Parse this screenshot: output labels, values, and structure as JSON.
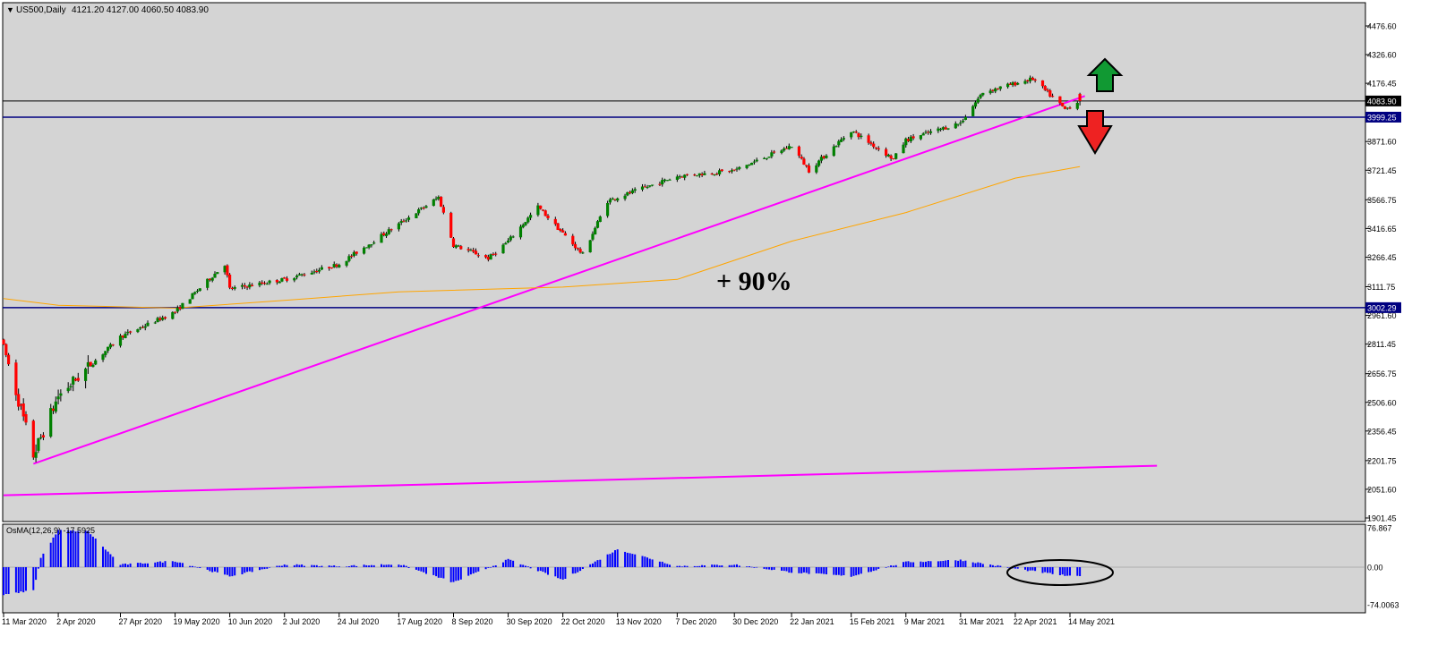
{
  "header": {
    "symbol": "US500,Daily",
    "ohlc": "4121.20 4127.00 4060.50 4083.90"
  },
  "annotation": {
    "gain_text": "+ 90%"
  },
  "colors": {
    "background": "#d4d4d4",
    "bull": "#008000",
    "bear": "#ff0000",
    "trendline": "#ff00ff",
    "moving_average": "#ffa500",
    "level_line": "#000080",
    "histogram": "#0000ff",
    "arrow_up": "#119933",
    "arrow_down": "#ee2222"
  },
  "price_axis": {
    "ticks": [
      "4476.60",
      "4326.60",
      "4176.45",
      "3871.60",
      "3721.45",
      "3566.75",
      "3416.65",
      "3266.45",
      "3111.75",
      "2961.60",
      "2811.45",
      "2656.75",
      "2506.60",
      "2356.45",
      "2201.75",
      "2051.60",
      "1901.45"
    ],
    "current_price": "4083.90",
    "resistance_label": "3999.25",
    "support_label": "3002.29"
  },
  "oscillator": {
    "title": "OsMA(12,26,9) -17.5925",
    "ticks": [
      "76.867",
      "0.00",
      "-74.0063"
    ]
  },
  "time_axis": {
    "labels": [
      "11 Mar 2020",
      "2 Apr 2020",
      "27 Apr 2020",
      "19 May 2020",
      "10 Jun 2020",
      "2 Jul 2020",
      "24 Jul 2020",
      "17 Aug 2020",
      "8 Sep 2020",
      "30 Sep 2020",
      "22 Oct 2020",
      "13 Nov 2020",
      "7 Dec 2020",
      "30 Dec 2020",
      "22 Jan 2021",
      "15 Feb 2021",
      "9 Mar 2021",
      "31 Mar 2021",
      "22 Apr 2021",
      "14 May 2021"
    ]
  },
  "chart_data": {
    "type": "candlestick",
    "symbol": "US500",
    "timeframe": "Daily",
    "last_bar": {
      "open": 4121.2,
      "high": 4127.0,
      "low": 4060.5,
      "close": 4083.9
    },
    "ylim": [
      1901.45,
      4550
    ],
    "horizontal_levels": [
      4083.9,
      3999.25,
      3002.29
    ],
    "path_anchors": [
      {
        "date": "11 Mar 2020",
        "close": 2800
      },
      {
        "date": "23 Mar 2020",
        "close": 2230
      },
      {
        "date": "2 Apr 2020",
        "close": 2540
      },
      {
        "date": "27 Apr 2020",
        "close": 2850
      },
      {
        "date": "19 May 2020",
        "close": 2980
      },
      {
        "date": "8 Jun 2020",
        "close": 3230
      },
      {
        "date": "10 Jun 2020",
        "close": 3100
      },
      {
        "date": "2 Jul 2020",
        "close": 3150
      },
      {
        "date": "24 Jul 2020",
        "close": 3230
      },
      {
        "date": "2 Sep 2020",
        "close": 3580
      },
      {
        "date": "8 Sep 2020",
        "close": 3330
      },
      {
        "date": "22 Sep 2020",
        "close": 3260
      },
      {
        "date": "30 Sep 2020",
        "close": 3350
      },
      {
        "date": "12 Oct 2020",
        "close": 3530
      },
      {
        "date": "30 Oct 2020",
        "close": 3280
      },
      {
        "date": "9 Nov 2020",
        "close": 3560
      },
      {
        "date": "13 Nov 2020",
        "close": 3580
      },
      {
        "date": "7 Dec 2020",
        "close": 3690
      },
      {
        "date": "30 Dec 2020",
        "close": 3720
      },
      {
        "date": "22 Jan 2021",
        "close": 3850
      },
      {
        "date": "29 Jan 2021",
        "close": 3720
      },
      {
        "date": "15 Feb 2021",
        "close": 3930
      },
      {
        "date": "4 Mar 2021",
        "close": 3780
      },
      {
        "date": "9 Mar 2021",
        "close": 3880
      },
      {
        "date": "31 Mar 2021",
        "close": 3970
      },
      {
        "date": "9 Apr 2021",
        "close": 4130
      },
      {
        "date": "29 Apr 2021",
        "close": 4200
      },
      {
        "date": "12 May 2021",
        "close": 4040
      },
      {
        "date": "18 May 2021",
        "close": 4084
      }
    ],
    "moving_average_anchors": [
      {
        "date": "11 Mar 2020",
        "value": 3050
      },
      {
        "date": "2 Apr 2020",
        "value": 3015
      },
      {
        "date": "19 May 2020",
        "value": 3000
      },
      {
        "date": "2 Jul 2020",
        "value": 3040
      },
      {
        "date": "17 Aug 2020",
        "value": 3085
      },
      {
        "date": "22 Oct 2020",
        "value": 3110
      },
      {
        "date": "7 Dec 2020",
        "value": 3150
      },
      {
        "date": "22 Jan 2021",
        "value": 3350
      },
      {
        "date": "9 Mar 2021",
        "value": 3500
      },
      {
        "date": "22 Apr 2021",
        "value": 3680
      },
      {
        "date": "18 May 2021",
        "value": 3740
      }
    ],
    "trendlines": [
      {
        "from": {
          "date": "23 Mar 2020",
          "value": 2185
        },
        "to": {
          "date": "20 May 2021",
          "value": 4110
        }
      },
      {
        "from": {
          "date": "11 Mar 2020",
          "value": 2020
        },
        "to": {
          "date": "18 Jun 2021",
          "value": 2175
        }
      }
    ],
    "oscillator_anchors": [
      {
        "date": "11 Mar 2020",
        "value": -55
      },
      {
        "date": "23 Mar 2020",
        "value": -45
      },
      {
        "date": "26 Mar 2020",
        "value": 18
      },
      {
        "date": "2 Apr 2020",
        "value": 72
      },
      {
        "date": "14 Apr 2020",
        "value": 70
      },
      {
        "date": "27 Apr 2020",
        "value": 5
      },
      {
        "date": "19 May 2020",
        "value": 12
      },
      {
        "date": "10 Jun 2020",
        "value": -18
      },
      {
        "date": "2 Jul 2020",
        "value": 5
      },
      {
        "date": "24 Jul 2020",
        "value": 2
      },
      {
        "date": "17 Aug 2020",
        "value": 6
      },
      {
        "date": "8 Sep 2020",
        "value": -30
      },
      {
        "date": "30 Sep 2020",
        "value": 15
      },
      {
        "date": "22 Oct 2020",
        "value": -25
      },
      {
        "date": "13 Nov 2020",
        "value": 35
      },
      {
        "date": "7 Dec 2020",
        "value": 2
      },
      {
        "date": "30 Dec 2020",
        "value": 5
      },
      {
        "date": "22 Jan 2021",
        "value": -10
      },
      {
        "date": "15 Feb 2021",
        "value": -18
      },
      {
        "date": "9 Mar 2021",
        "value": 10
      },
      {
        "date": "31 Mar 2021",
        "value": 14
      },
      {
        "date": "22 Apr 2021",
        "value": -3
      },
      {
        "date": "14 May 2021",
        "value": -18
      }
    ]
  }
}
